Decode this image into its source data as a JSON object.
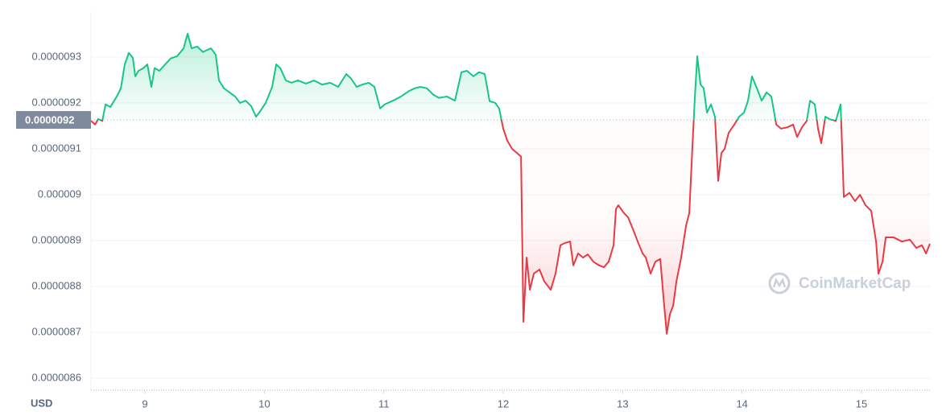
{
  "chart_data": {
    "type": "line",
    "y_label": "USD",
    "watermark": "CoinMarketCap",
    "colors": {
      "up": "#16c784",
      "down": "#ea3943"
    },
    "reference": {
      "value": 9.163e-06,
      "label": "0.0000092"
    },
    "grid": true,
    "xlim": [
      8.548,
      15.573
    ],
    "xticks": [
      9,
      10,
      11,
      12,
      13,
      14,
      15
    ],
    "ylim": [
      8.574e-06,
      9.398e-06
    ],
    "yticks": [
      8.6e-06,
      8.7e-06,
      8.8e-06,
      8.9e-06,
      9e-06,
      9.1e-06,
      9.2e-06,
      9.3e-06
    ],
    "x": [
      8.548,
      8.582,
      8.609,
      8.643,
      8.67,
      8.71,
      8.764,
      8.798,
      8.831,
      8.865,
      8.899,
      8.919,
      8.946,
      8.987,
      9.02,
      9.054,
      9.081,
      9.121,
      9.169,
      9.216,
      9.27,
      9.324,
      9.357,
      9.391,
      9.438,
      9.485,
      9.526,
      9.553,
      9.593,
      9.62,
      9.661,
      9.708,
      9.755,
      9.796,
      9.843,
      9.89,
      9.93,
      9.957,
      10.011,
      10.065,
      10.099,
      10.133,
      10.18,
      10.227,
      10.281,
      10.348,
      10.416,
      10.483,
      10.551,
      10.618,
      10.652,
      10.686,
      10.726,
      10.773,
      10.82,
      10.874,
      10.921,
      10.969,
      11.009,
      11.077,
      11.144,
      11.211,
      11.259,
      11.306,
      11.36,
      11.414,
      11.461,
      11.528,
      11.596,
      11.65,
      11.697,
      11.751,
      11.798,
      11.845,
      11.886,
      11.933,
      11.966,
      12.0,
      12.034,
      12.074,
      12.115,
      12.149,
      12.169,
      12.196,
      12.223,
      12.256,
      12.304,
      12.344,
      12.398,
      12.438,
      12.479,
      12.519,
      12.56,
      12.587,
      12.627,
      12.668,
      12.708,
      12.755,
      12.803,
      12.843,
      12.883,
      12.924,
      12.944,
      12.964,
      13.011,
      13.045,
      13.086,
      13.126,
      13.167,
      13.194,
      13.234,
      13.274,
      13.315,
      13.342,
      13.369,
      13.396,
      13.423,
      13.45,
      13.49,
      13.531,
      13.558,
      13.585,
      13.605,
      13.625,
      13.652,
      13.679,
      13.706,
      13.74,
      13.773,
      13.8,
      13.827,
      13.854,
      13.888,
      13.935,
      13.976,
      14.016,
      14.05,
      14.083,
      14.124,
      14.164,
      14.205,
      14.245,
      14.286,
      14.326,
      14.38,
      14.427,
      14.461,
      14.502,
      14.542,
      14.569,
      14.609,
      14.636,
      14.663,
      14.697,
      14.731,
      14.785,
      14.825,
      14.852,
      14.899,
      14.946,
      14.987,
      15.034,
      15.081,
      15.122,
      15.142,
      15.176,
      15.203,
      15.27,
      15.338,
      15.405,
      15.459,
      15.506,
      15.54,
      15.573
    ],
    "values": [
      9.161e-06,
      9.153e-06,
      9.165e-06,
      9.161e-06,
      9.197e-06,
      9.191e-06,
      9.214e-06,
      9.232e-06,
      9.284e-06,
      9.309e-06,
      9.298e-06,
      9.258e-06,
      9.27e-06,
      9.276e-06,
      9.284e-06,
      9.235e-06,
      9.276e-06,
      9.27e-06,
      9.284e-06,
      9.297e-06,
      9.302e-06,
      9.319e-06,
      9.351e-06,
      9.319e-06,
      9.323e-06,
      9.311e-06,
      9.316e-06,
      9.319e-06,
      9.305e-06,
      9.249e-06,
      9.232e-06,
      9.223e-06,
      9.214e-06,
      9.2e-06,
      9.205e-06,
      9.193e-06,
      9.17e-06,
      9.179e-06,
      9.2e-06,
      9.235e-06,
      9.284e-06,
      9.276e-06,
      9.249e-06,
      9.244e-06,
      9.249e-06,
      9.242e-06,
      9.249e-06,
      9.24e-06,
      9.244e-06,
      9.235e-06,
      9.249e-06,
      9.263e-06,
      9.253e-06,
      9.235e-06,
      9.24e-06,
      9.244e-06,
      9.235e-06,
      9.188e-06,
      9.197e-06,
      9.205e-06,
      9.214e-06,
      9.226e-06,
      9.232e-06,
      9.235e-06,
      9.232e-06,
      9.218e-06,
      9.211e-06,
      9.214e-06,
      9.205e-06,
      9.267e-06,
      9.27e-06,
      9.258e-06,
      9.267e-06,
      9.263e-06,
      9.204e-06,
      9.2e-06,
      9.188e-06,
      9.144e-06,
      9.118e-06,
      9.1e-06,
      9.091e-06,
      9.083e-06,
      8.723e-06,
      8.863e-06,
      8.793e-06,
      8.828e-06,
      8.837e-06,
      8.811e-06,
      8.793e-06,
      8.828e-06,
      8.89e-06,
      8.895e-06,
      8.898e-06,
      8.846e-06,
      8.872e-06,
      8.863e-06,
      8.87e-06,
      8.854e-06,
      8.846e-06,
      8.842e-06,
      8.854e-06,
      8.89e-06,
      8.969e-06,
      8.977e-06,
      8.96e-06,
      8.951e-06,
      8.925e-06,
      8.898e-06,
      8.872e-06,
      8.863e-06,
      8.828e-06,
      8.854e-06,
      8.86e-06,
      8.776e-06,
      8.697e-06,
      8.74e-06,
      8.758e-06,
      8.811e-06,
      8.863e-06,
      8.933e-06,
      8.96e-06,
      9.109e-06,
      9.214e-06,
      9.302e-06,
      9.24e-06,
      9.232e-06,
      9.179e-06,
      9.197e-06,
      9.17e-06,
      9.03e-06,
      9.091e-06,
      9.1e-06,
      9.135e-06,
      9.153e-06,
      9.17e-06,
      9.179e-06,
      9.205e-06,
      9.258e-06,
      9.232e-06,
      9.205e-06,
      9.223e-06,
      9.214e-06,
      9.153e-06,
      9.144e-06,
      9.147e-06,
      9.153e-06,
      9.126e-06,
      9.147e-06,
      9.161e-06,
      9.205e-06,
      9.197e-06,
      9.144e-06,
      9.112e-06,
      9.17e-06,
      9.165e-06,
      9.161e-06,
      9.197e-06,
      8.995e-06,
      9.004e-06,
      8.986e-06,
      9e-06,
      8.977e-06,
      8.965e-06,
      8.898e-06,
      8.828e-06,
      8.854e-06,
      8.907e-06,
      8.907e-06,
      8.898e-06,
      8.902e-06,
      8.884e-06,
      8.89e-06,
      8.872e-06,
      8.893e-06
    ]
  }
}
